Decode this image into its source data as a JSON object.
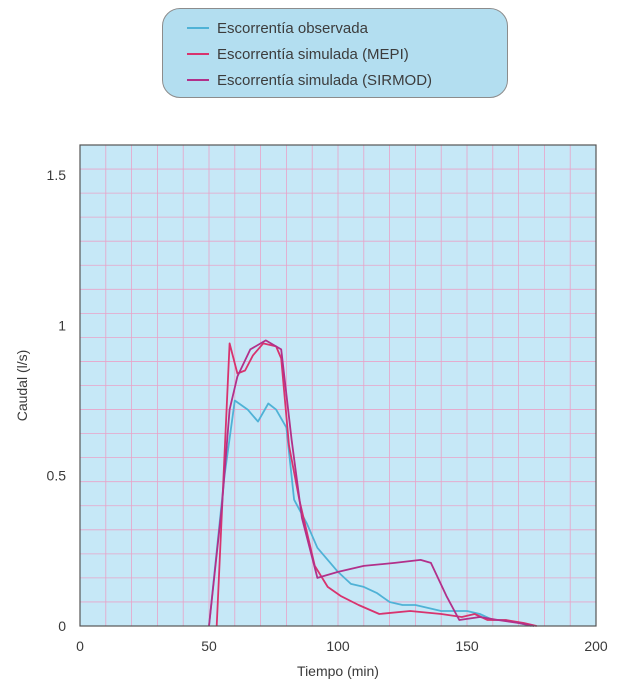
{
  "chart_data": {
    "type": "line",
    "title": "",
    "xlabel": "Tiempo (min)",
    "ylabel": "Caudal (l/s)",
    "xlim": [
      0,
      200
    ],
    "ylim": [
      0,
      1.6
    ],
    "x_ticks": [
      0,
      50,
      100,
      150,
      200
    ],
    "x_tick_labels": [
      "0",
      "50",
      "100",
      "150",
      "200"
    ],
    "y_ticks": [
      0,
      0.5,
      1,
      1.5
    ],
    "y_tick_labels": [
      "0",
      "0.5",
      "1",
      "1.5"
    ],
    "grid": true,
    "legend_position": "top-center",
    "background_color": "#c6e8f7",
    "grid_color": "#e8a3c8",
    "series": [
      {
        "name": "Escorrentía observada",
        "color": "#4fb2d6",
        "points": [
          [
            50,
            0
          ],
          [
            56,
            0.5
          ],
          [
            60,
            0.75
          ],
          [
            65,
            0.72
          ],
          [
            69,
            0.68
          ],
          [
            73,
            0.74
          ],
          [
            76,
            0.72
          ],
          [
            80,
            0.66
          ],
          [
            83,
            0.42
          ],
          [
            88,
            0.34
          ],
          [
            92,
            0.26
          ],
          [
            100,
            0.18
          ],
          [
            105,
            0.14
          ],
          [
            110,
            0.13
          ],
          [
            115,
            0.11
          ],
          [
            120,
            0.08
          ],
          [
            125,
            0.07
          ],
          [
            130,
            0.07
          ],
          [
            140,
            0.05
          ],
          [
            145,
            0.05
          ],
          [
            150,
            0.05
          ],
          [
            155,
            0.04
          ],
          [
            160,
            0.02
          ],
          [
            165,
            0.02
          ],
          [
            170,
            0.01
          ],
          [
            175,
            0
          ]
        ]
      },
      {
        "name": "Escorrentía simulada (MEPI)",
        "color": "#d8336e",
        "points": [
          [
            53,
            0
          ],
          [
            58,
            0.94
          ],
          [
            61,
            0.84
          ],
          [
            64,
            0.85
          ],
          [
            67,
            0.9
          ],
          [
            71,
            0.94
          ],
          [
            76,
            0.93
          ],
          [
            78,
            0.89
          ],
          [
            81,
            0.6
          ],
          [
            85,
            0.42
          ],
          [
            91,
            0.2
          ],
          [
            96,
            0.13
          ],
          [
            101,
            0.1
          ],
          [
            108,
            0.07
          ],
          [
            116,
            0.04
          ],
          [
            128,
            0.05
          ],
          [
            140,
            0.04
          ],
          [
            148,
            0.03
          ],
          [
            153,
            0.04
          ],
          [
            158,
            0.02
          ],
          [
            165,
            0.02
          ],
          [
            172,
            0.01
          ],
          [
            177,
            0
          ]
        ]
      },
      {
        "name": "Escorrentía simulada (SIRMOD)",
        "color": "#b2308a",
        "points": [
          [
            50,
            0
          ],
          [
            55,
            0.4
          ],
          [
            58,
            0.72
          ],
          [
            61,
            0.83
          ],
          [
            66,
            0.92
          ],
          [
            72,
            0.95
          ],
          [
            78,
            0.92
          ],
          [
            82,
            0.62
          ],
          [
            86,
            0.36
          ],
          [
            92,
            0.16
          ],
          [
            100,
            0.18
          ],
          [
            110,
            0.2
          ],
          [
            122,
            0.21
          ],
          [
            132,
            0.22
          ],
          [
            136,
            0.21
          ],
          [
            142,
            0.1
          ],
          [
            147,
            0.02
          ],
          [
            155,
            0.03
          ],
          [
            162,
            0.02
          ],
          [
            170,
            0.01
          ],
          [
            176,
            0
          ]
        ]
      }
    ]
  }
}
